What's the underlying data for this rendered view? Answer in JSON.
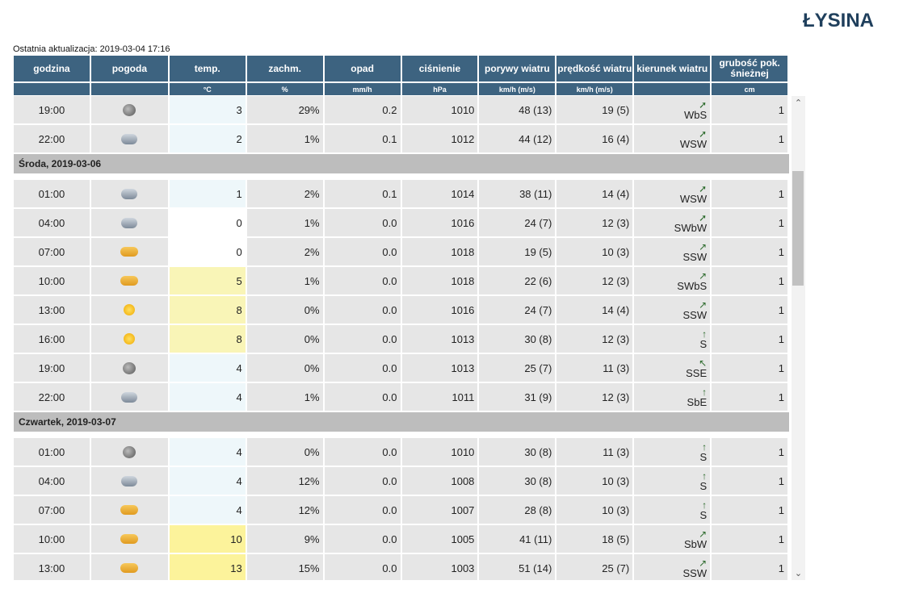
{
  "title": "ŁYSINA",
  "last_update": "Ostatnia aktualizacja: 2019-03-04 17:16",
  "headers": [
    {
      "label": "godzina",
      "unit": ""
    },
    {
      "label": "pogoda",
      "unit": ""
    },
    {
      "label": "temp.",
      "unit": "°C"
    },
    {
      "label": "zachm.",
      "unit": "%"
    },
    {
      "label": "opad",
      "unit": "mm/h"
    },
    {
      "label": "ciśnienie",
      "unit": "hPa"
    },
    {
      "label": "porywy wiatru",
      "unit": "km/h (m/s)"
    },
    {
      "label": "prędkość wiatru",
      "unit": "km/h (m/s)"
    },
    {
      "label": "kierunek wiatru",
      "unit": ""
    },
    {
      "label": "grubość pok. śnieżnej",
      "unit": "cm"
    }
  ],
  "sections": [
    {
      "day": "",
      "rows": [
        {
          "time": "19:00",
          "icon": "night-cloud-icon",
          "temp": "3",
          "tclass": "cold",
          "cloud": "29%",
          "precip": "0.2",
          "pressure": "1010",
          "gusts": "48 (13)",
          "speed": "19 (5)",
          "arrow": "➚",
          "dir": "WbS",
          "snow": "1"
        },
        {
          "time": "22:00",
          "icon": "cloud-snow-icon",
          "temp": "2",
          "tclass": "cold",
          "cloud": "1%",
          "precip": "0.1",
          "pressure": "1012",
          "gusts": "44 (12)",
          "speed": "16 (4)",
          "arrow": "➚",
          "dir": "WSW",
          "snow": "1"
        }
      ]
    },
    {
      "day": "Środa, 2019-03-06",
      "rows": [
        {
          "time": "01:00",
          "icon": "cloud-snow-icon",
          "temp": "1",
          "tclass": "cold",
          "cloud": "2%",
          "precip": "0.1",
          "pressure": "1014",
          "gusts": "38 (11)",
          "speed": "14 (4)",
          "arrow": "➚",
          "dir": "WSW",
          "snow": "1"
        },
        {
          "time": "04:00",
          "icon": "cloud-icon",
          "temp": "0",
          "tclass": "zero",
          "cloud": "1%",
          "precip": "0.0",
          "pressure": "1016",
          "gusts": "24 (7)",
          "speed": "12 (3)",
          "arrow": "➚",
          "dir": "SWbW",
          "snow": "1"
        },
        {
          "time": "07:00",
          "icon": "partly-sunny-icon",
          "temp": "0",
          "tclass": "zero",
          "cloud": "2%",
          "precip": "0.0",
          "pressure": "1018",
          "gusts": "19 (5)",
          "speed": "10 (3)",
          "arrow": "↗",
          "dir": "SSW",
          "snow": "1"
        },
        {
          "time": "10:00",
          "icon": "partly-sunny-icon",
          "temp": "5",
          "tclass": "warm",
          "cloud": "1%",
          "precip": "0.0",
          "pressure": "1018",
          "gusts": "22 (6)",
          "speed": "12 (3)",
          "arrow": "↗",
          "dir": "SWbS",
          "snow": "1"
        },
        {
          "time": "13:00",
          "icon": "sun-icon",
          "temp": "8",
          "tclass": "warm",
          "cloud": "0%",
          "precip": "0.0",
          "pressure": "1016",
          "gusts": "24 (7)",
          "speed": "14 (4)",
          "arrow": "↗",
          "dir": "SSW",
          "snow": "1"
        },
        {
          "time": "16:00",
          "icon": "sun-icon",
          "temp": "8",
          "tclass": "warm",
          "cloud": "0%",
          "precip": "0.0",
          "pressure": "1013",
          "gusts": "30 (8)",
          "speed": "12 (3)",
          "arrow": "↑",
          "dir": "S",
          "snow": "1"
        },
        {
          "time": "19:00",
          "icon": "night-icon",
          "temp": "4",
          "tclass": "cold",
          "cloud": "0%",
          "precip": "0.0",
          "pressure": "1013",
          "gusts": "25 (7)",
          "speed": "11 (3)",
          "arrow": "↖",
          "dir": "SSE",
          "snow": "1"
        },
        {
          "time": "22:00",
          "icon": "cloud-icon",
          "temp": "4",
          "tclass": "cold",
          "cloud": "1%",
          "precip": "0.0",
          "pressure": "1011",
          "gusts": "31 (9)",
          "speed": "12 (3)",
          "arrow": "↑",
          "dir": "SbE",
          "snow": "1"
        }
      ]
    },
    {
      "day": "Czwartek, 2019-03-07",
      "rows": [
        {
          "time": "01:00",
          "icon": "night-icon",
          "temp": "4",
          "tclass": "cold",
          "cloud": "0%",
          "precip": "0.0",
          "pressure": "1010",
          "gusts": "30 (8)",
          "speed": "11 (3)",
          "arrow": "↑",
          "dir": "S",
          "snow": "1"
        },
        {
          "time": "04:00",
          "icon": "cloud-icon",
          "temp": "4",
          "tclass": "cold",
          "cloud": "12%",
          "precip": "0.0",
          "pressure": "1008",
          "gusts": "30 (8)",
          "speed": "10 (3)",
          "arrow": "↑",
          "dir": "S",
          "snow": "1"
        },
        {
          "time": "07:00",
          "icon": "partly-sunny-icon",
          "temp": "4",
          "tclass": "cold",
          "cloud": "12%",
          "precip": "0.0",
          "pressure": "1007",
          "gusts": "28 (8)",
          "speed": "10 (3)",
          "arrow": "↑",
          "dir": "S",
          "snow": "1"
        },
        {
          "time": "10:00",
          "icon": "partly-sunny-icon",
          "temp": "10",
          "tclass": "warmer",
          "cloud": "9%",
          "precip": "0.0",
          "pressure": "1005",
          "gusts": "41 (11)",
          "speed": "18 (5)",
          "arrow": "↗",
          "dir": "SbW",
          "snow": "1"
        },
        {
          "time": "13:00",
          "icon": "partly-sunny-icon",
          "temp": "13",
          "tclass": "warmer",
          "cloud": "15%",
          "precip": "0.0",
          "pressure": "1003",
          "gusts": "51 (14)",
          "speed": "25 (7)",
          "arrow": "↗",
          "dir": "SSW",
          "snow": "1"
        }
      ]
    }
  ]
}
